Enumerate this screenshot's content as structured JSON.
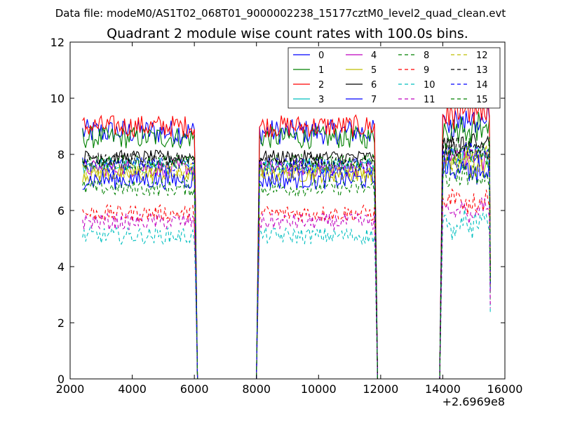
{
  "suptitle": "Data file: modeM0/AS1T02_068T01_9000002238_15177cztM0_level2_quad_clean.evt",
  "chart_data": {
    "type": "line",
    "title": "Quadrant 2 module wise count rates with 100.0s bins.",
    "xlabel": "",
    "ylabel": "",
    "xlim": [
      2000,
      16000
    ],
    "ylim": [
      0,
      12
    ],
    "x_offset_label": "+2.6969e8",
    "xticks": [
      2000,
      4000,
      6000,
      8000,
      10000,
      12000,
      14000,
      16000
    ],
    "xtick_labels": [
      "2000",
      "4000",
      "6000",
      "8000",
      "10000",
      "12000",
      "14000",
      "16000"
    ],
    "yticks": [
      0,
      2,
      4,
      6,
      8,
      10,
      12
    ],
    "ytick_labels": [
      "0",
      "2",
      "4",
      "6",
      "8",
      "10",
      "12"
    ],
    "grid": false,
    "legend_position": "top-right",
    "legend_columns": 4,
    "segments": [
      {
        "start": 2400,
        "end": 6000
      },
      {
        "start": 8100,
        "end": 11800
      },
      {
        "start": 14000,
        "end": 15500
      }
    ],
    "series": [
      {
        "name": "0",
        "color": "#0000ff",
        "style": "solid",
        "level": 8.8,
        "noise": 0.45
      },
      {
        "name": "1",
        "color": "#008000",
        "style": "solid",
        "level": 8.6,
        "noise": 0.4
      },
      {
        "name": "2",
        "color": "#ff0000",
        "style": "solid",
        "level": 9.0,
        "noise": 0.4
      },
      {
        "name": "3",
        "color": "#00bfbf",
        "style": "solid",
        "level": 7.6,
        "noise": 0.3
      },
      {
        "name": "4",
        "color": "#bf00bf",
        "style": "solid",
        "level": 7.5,
        "noise": 0.3
      },
      {
        "name": "5",
        "color": "#bfbf00",
        "style": "solid",
        "level": 7.3,
        "noise": 0.3
      },
      {
        "name": "6",
        "color": "#000000",
        "style": "solid",
        "level": 7.9,
        "noise": 0.25
      },
      {
        "name": "7",
        "color": "#0000ff",
        "style": "solid",
        "level": 7.1,
        "noise": 0.35
      },
      {
        "name": "8",
        "color": "#008000",
        "style": "dashed",
        "level": 6.8,
        "noise": 0.3
      },
      {
        "name": "9",
        "color": "#ff0000",
        "style": "dashed",
        "level": 5.9,
        "noise": 0.3
      },
      {
        "name": "10",
        "color": "#00bfbf",
        "style": "dashed",
        "level": 5.1,
        "noise": 0.3
      },
      {
        "name": "11",
        "color": "#bf00bf",
        "style": "dashed",
        "level": 5.6,
        "noise": 0.3
      },
      {
        "name": "12",
        "color": "#bfbf00",
        "style": "dashed",
        "level": 7.4,
        "noise": 0.3
      },
      {
        "name": "13",
        "color": "#000000",
        "style": "dashed",
        "level": 7.8,
        "noise": 0.25
      },
      {
        "name": "14",
        "color": "#0000ff",
        "style": "dashed",
        "level": 7.6,
        "noise": 0.3
      },
      {
        "name": "15",
        "color": "#008000",
        "style": "dashed",
        "level": 7.7,
        "noise": 0.3
      }
    ]
  }
}
